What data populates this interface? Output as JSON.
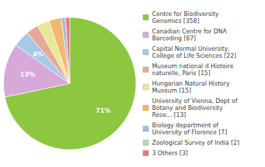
{
  "chart_data": {
    "type": "pie",
    "categories": [
      "Centre for Biodiversity\nGenomics [358]",
      "Canadian Centre for DNA\nBarcoding [67]",
      "Capital Normal University,\nCollege of Life Sciences [22]",
      "Museum national d Histoire\nnaturelle, Paris [15]",
      "Hungarian Natural History\nMuseum [15]",
      "University of Vienna, Dept of\nBotany and Biodiversity\nRese... [13]",
      "Biology department of\nUniversity of Florence [7]",
      "Zoological Survey of India [2]",
      "3 Others [3]"
    ],
    "values": [
      71,
      13,
      4,
      3,
      3,
      3,
      1,
      0,
      1
    ],
    "value_labels": [
      "71%",
      "13%",
      "4%",
      null,
      null,
      null,
      null,
      null,
      null
    ],
    "colors": [
      "#8dc63f",
      "#d8a8d8",
      "#a8c8e8",
      "#e8a898",
      "#e8e898",
      "#f0b870",
      "#a8b8d8",
      "#b8d8b8",
      "#e87878"
    ],
    "data_labels": true,
    "legend": "right"
  }
}
